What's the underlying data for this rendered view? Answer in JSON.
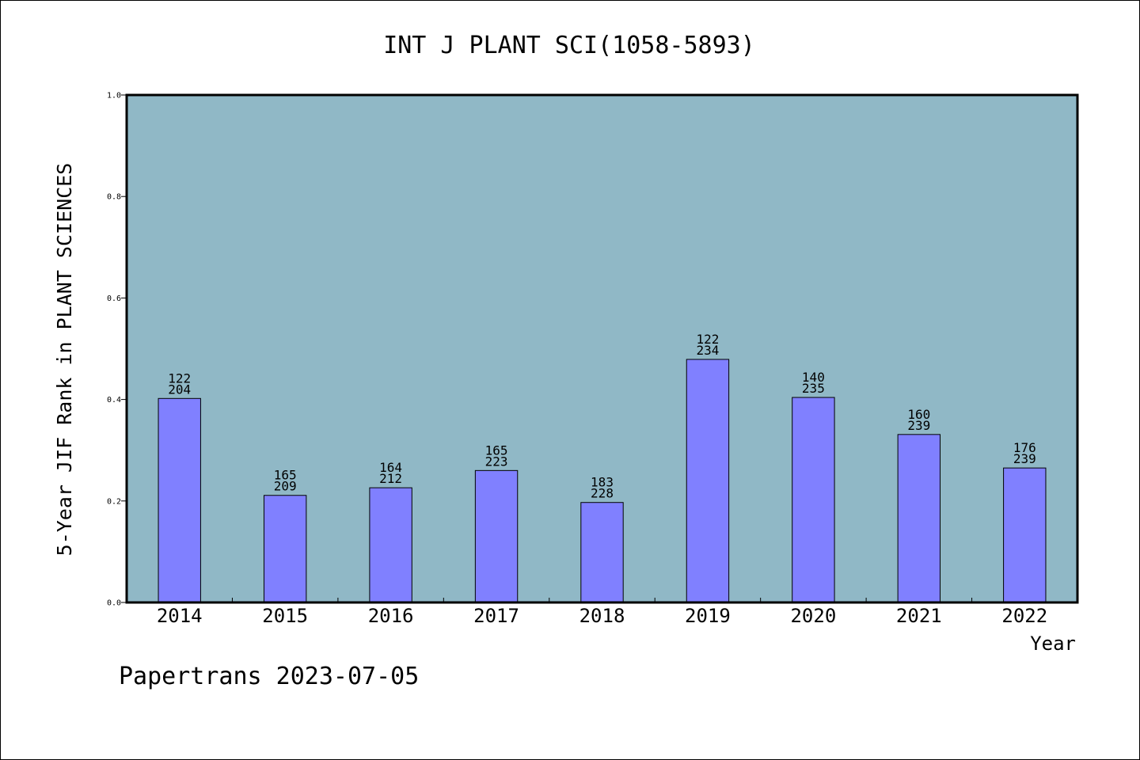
{
  "chart_data": {
    "type": "bar",
    "title": "INT J PLANT SCI(1058-5893)",
    "ylabel": "5-Year JIF Rank in PLANT SCIENCES",
    "xlabel": "Year",
    "categories": [
      "2014",
      "2015",
      "2016",
      "2017",
      "2018",
      "2019",
      "2020",
      "2021",
      "2022"
    ],
    "values": [
      0.402,
      0.211,
      0.226,
      0.26,
      0.197,
      0.479,
      0.404,
      0.331,
      0.265
    ],
    "rank_labels": [
      [
        "122",
        "204"
      ],
      [
        "165",
        "209"
      ],
      [
        "164",
        "212"
      ],
      [
        "165",
        "223"
      ],
      [
        "183",
        "228"
      ],
      [
        "122",
        "234"
      ],
      [
        "140",
        "235"
      ],
      [
        "160",
        "239"
      ],
      [
        "176",
        "239"
      ]
    ],
    "ylim": [
      0.0,
      1.0
    ],
    "yticks": [
      "0.0",
      "0.2",
      "0.4",
      "0.6",
      "0.8",
      "1.0"
    ],
    "grid": false,
    "colors": {
      "plot_background": "#90b8c6",
      "bar_fill": "#8080ff",
      "axis": "#000000"
    }
  },
  "footer": "Papertrans 2023-07-05"
}
